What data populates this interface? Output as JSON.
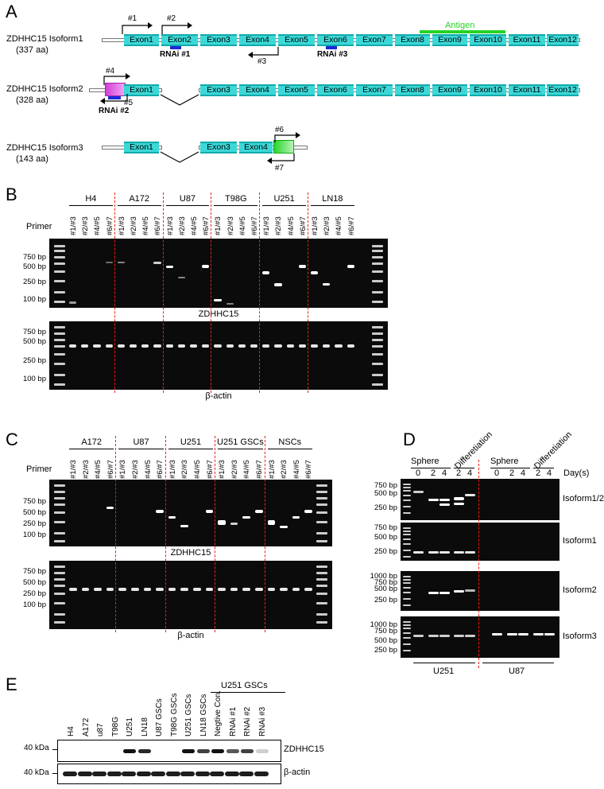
{
  "panels": {
    "a": "A",
    "b": "B",
    "c": "C",
    "d": "D",
    "e": "E"
  },
  "panel_a": {
    "isoform1": {
      "name": "ZDHHC15 Isoform1",
      "aa": "(337 aa)"
    },
    "isoform2": {
      "name": "ZDHHC15 Isoform2",
      "aa": "(328 aa)"
    },
    "isoform3": {
      "name": "ZDHHC15 Isoform3",
      "aa": "(143 aa)"
    },
    "exons": [
      "Exon1",
      "Exon2",
      "Exon3",
      "Exon4",
      "Exon5",
      "Exon6",
      "Exon7",
      "Exon8",
      "Exon9",
      "Exon10",
      "Exon11",
      "Exon12"
    ],
    "antigen": "Antigen",
    "rnai1": "RNAi #1",
    "rnai2": "RNAi #2",
    "rnai3": "RNAi #3",
    "primers": [
      "#1",
      "#2",
      "#3",
      "#4",
      "#5",
      "#6",
      "#7"
    ]
  },
  "panel_b": {
    "primer_label": "Primer",
    "groups": [
      "H4",
      "A172",
      "U87",
      "T98G",
      "U251",
      "LN18"
    ],
    "lanes": [
      "#1/#3",
      "#2/#3",
      "#4/#5",
      "#6/#7"
    ],
    "sizes_top": [
      "750 bp",
      "500 bp",
      "250 bp",
      "100 bp"
    ],
    "sizes_bottom": [
      "750 bp",
      "500 bp",
      "250 bp",
      "100 bp"
    ],
    "gel_top_label": "ZDHHC15",
    "gel_bottom_label": "β-actin"
  },
  "panel_c": {
    "primer_label": "Primer",
    "groups": [
      "A172",
      "U87",
      "U251",
      "U251 GSCs",
      "NSCs"
    ],
    "lanes": [
      "#1/#3",
      "#2/#3",
      "#4/#5",
      "#6/#7"
    ],
    "sizes_top": [
      "750 bp",
      "500 bp",
      "250 bp",
      "100 bp"
    ],
    "sizes_bottom": [
      "750 bp",
      "500 bp",
      "250 bp",
      "100 bp"
    ],
    "gel_top_label": "ZDHHC15",
    "gel_bottom_label": "β-actin"
  },
  "panel_d": {
    "sphere": "Sphere",
    "diff": "Differetiation",
    "days": [
      "0",
      "2",
      "4",
      "2",
      "4",
      "0",
      "2",
      "4",
      "2",
      "4"
    ],
    "day_label": "Day(s)",
    "gels": [
      {
        "label": "Isoform1/2",
        "sizes": [
          "750 bp",
          "500 bp",
          "250 bp"
        ]
      },
      {
        "label": "Isoform1",
        "sizes": [
          "750 bp",
          "500 bp",
          "250 bp"
        ]
      },
      {
        "label": "Isoform2",
        "sizes": [
          "1000 bp",
          "750 bp",
          "500 bp",
          "250 bp"
        ]
      },
      {
        "label": "Isoform3",
        "sizes": [
          "1000 bp",
          "750 bp",
          "500 bp",
          "250 bp"
        ]
      }
    ],
    "cells": [
      "U251",
      "U87"
    ]
  },
  "panel_e": {
    "group_label": "U251 GSCs",
    "lanes": [
      "H4",
      "A172",
      "u87",
      "T98G",
      "U251",
      "LN18",
      "U87 GSCs",
      "T98G GSCs",
      "U251 GSCs",
      "LN18 GSCs",
      "Negtive Con.",
      "RNAi #1",
      "RNAi #2",
      "RNAi #3"
    ],
    "kda1": "40 kDa",
    "kda2": "40 kDa",
    "blot1": "ZDHHC15",
    "blot2": "β-actin"
  }
}
